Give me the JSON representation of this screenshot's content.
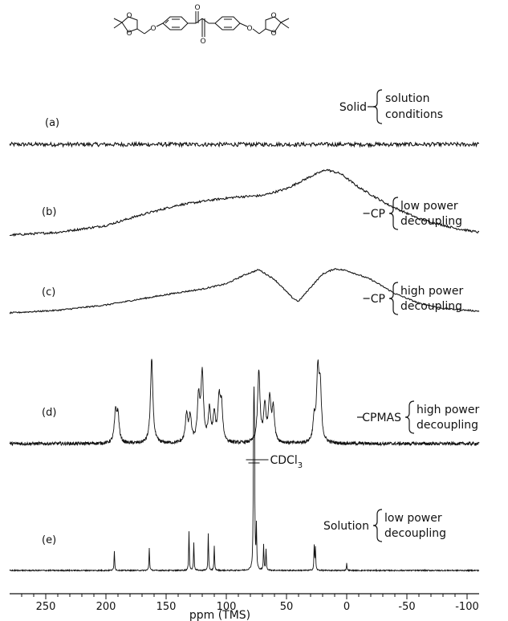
{
  "chart_data": {
    "type": "line",
    "xlabel": "ppm (TMS)",
    "xlim": [
      280,
      -110
    ],
    "x_reversed": true,
    "xticks": [
      250,
      200,
      150,
      100,
      50,
      0,
      -50,
      -100
    ],
    "xtick_labels": [
      "250",
      "200",
      "150",
      "100",
      "50",
      "0",
      "-50",
      "-100"
    ],
    "header": {
      "label": "Solid",
      "brace": [
        "solution",
        "conditions"
      ]
    },
    "solvent_label": "CDCl",
    "solvent_subscript": "3",
    "solvent_shift": 77,
    "spectra": [
      {
        "id": "(a)",
        "kind": "noise",
        "amplitude": 2.5,
        "label_prefix": "",
        "label_main": "",
        "brace": []
      },
      {
        "id": "(b)",
        "kind": "broad",
        "label_prefix": "",
        "label_main": "CP",
        "brace": [
          "low power",
          "decoupling"
        ],
        "profile": [
          [
            280,
            0
          ],
          [
            240,
            4
          ],
          [
            200,
            14
          ],
          [
            170,
            30
          ],
          [
            140,
            44
          ],
          [
            110,
            52
          ],
          [
            90,
            56
          ],
          [
            70,
            58
          ],
          [
            50,
            68
          ],
          [
            30,
            86
          ],
          [
            17,
            96
          ],
          [
            5,
            90
          ],
          [
            -10,
            70
          ],
          [
            -35,
            44
          ],
          [
            -60,
            24
          ],
          [
            -90,
            10
          ],
          [
            -110,
            4
          ]
        ]
      },
      {
        "id": "(c)",
        "kind": "broad",
        "label_prefix": "",
        "label_main": "CP",
        "brace": [
          "high power",
          "decoupling"
        ],
        "profile": [
          [
            280,
            0
          ],
          [
            240,
            6
          ],
          [
            200,
            18
          ],
          [
            170,
            32
          ],
          [
            140,
            46
          ],
          [
            120,
            54
          ],
          [
            100,
            66
          ],
          [
            85,
            86
          ],
          [
            73,
            98
          ],
          [
            60,
            76
          ],
          [
            45,
            34
          ],
          [
            40,
            26
          ],
          [
            30,
            58
          ],
          [
            20,
            88
          ],
          [
            10,
            100
          ],
          [
            0,
            96
          ],
          [
            -20,
            76
          ],
          [
            -40,
            44
          ],
          [
            -60,
            22
          ],
          [
            -80,
            10
          ],
          [
            -110,
            4
          ]
        ]
      },
      {
        "id": "(d)",
        "kind": "peaks",
        "width": 1.2,
        "noise": 3,
        "label_prefix": "",
        "label_main": "CPMAS",
        "brace": [
          "high power",
          "decoupling"
        ],
        "peaks": [
          [
            192,
            52
          ],
          [
            190,
            46
          ],
          [
            162,
            150
          ],
          [
            133,
            50
          ],
          [
            130,
            44
          ],
          [
            123,
            78
          ],
          [
            120,
            120
          ],
          [
            114,
            56
          ],
          [
            110,
            46
          ],
          [
            106,
            72
          ],
          [
            104,
            60
          ],
          [
            73,
            125
          ],
          [
            68,
            62
          ],
          [
            64,
            76
          ],
          [
            61,
            60
          ],
          [
            27,
            38
          ],
          [
            24,
            118
          ],
          [
            22,
            90
          ]
        ]
      },
      {
        "id": "(e)",
        "kind": "peaks",
        "width": 0.3,
        "noise": 0.8,
        "label_prefix": "",
        "label_main": "Solution",
        "brace": [
          "low power",
          "decoupling"
        ],
        "peaks": [
          [
            193,
            28
          ],
          [
            164,
            32
          ],
          [
            131,
            56
          ],
          [
            127,
            40
          ],
          [
            115,
            52
          ],
          [
            110,
            34
          ],
          [
            77.4,
            150
          ],
          [
            77.0,
            152
          ],
          [
            76.6,
            148
          ],
          [
            75,
            60
          ],
          [
            69,
            36
          ],
          [
            67,
            30
          ],
          [
            27,
            34
          ],
          [
            26,
            32
          ],
          [
            0,
            10
          ]
        ]
      }
    ]
  }
}
